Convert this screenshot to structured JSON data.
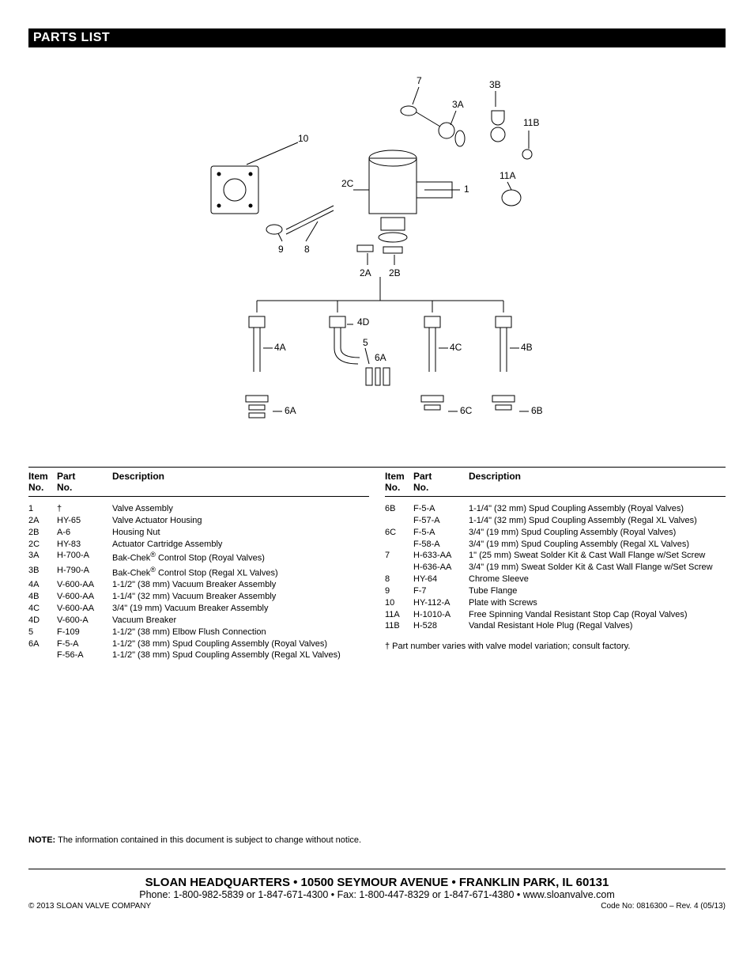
{
  "title": "PARTS LIST",
  "diagram": {
    "labels": [
      "7",
      "3B",
      "3A",
      "11B",
      "10",
      "2C",
      "1",
      "11A",
      "9",
      "8",
      "2A",
      "2B",
      "4D",
      "4A",
      "5",
      "4C",
      "4B",
      "6A",
      "6A",
      "6C",
      "6B"
    ],
    "colors": {
      "stroke": "#000000",
      "background": "#ffffff"
    }
  },
  "table_headers": {
    "item": "Item No.",
    "part": "Part No.",
    "desc": "Description"
  },
  "left_rows": [
    {
      "item": "1",
      "part": "†",
      "desc": "Valve Assembly"
    },
    {
      "item": "2A",
      "part": "HY-65",
      "desc": "Valve Actuator Housing"
    },
    {
      "item": "2B",
      "part": "A-6",
      "desc": "Housing Nut"
    },
    {
      "item": "2C",
      "part": "HY-83",
      "desc": "Actuator Cartridge Assembly"
    },
    {
      "item": "3A",
      "part": "H-700-A",
      "desc": "Bak-Chek® Control Stop (Royal Valves)"
    },
    {
      "item": "3B",
      "part": "H-790-A",
      "desc": "Bak-Chek® Control Stop (Regal XL Valves)"
    },
    {
      "item": "4A",
      "part": "V-600-AA",
      "desc": "1-1/2\" (38 mm) Vacuum Breaker Assembly"
    },
    {
      "item": "4B",
      "part": "V-600-AA",
      "desc": "1-1/4\" (32 mm) Vacuum Breaker Assembly"
    },
    {
      "item": "4C",
      "part": "V-600-AA",
      "desc": "3/4\" (19 mm) Vacuum Breaker Assembly"
    },
    {
      "item": "4D",
      "part": "V-600-A",
      "desc": "Vacuum Breaker"
    },
    {
      "item": "5",
      "part": "F-109",
      "desc": "1-1/2\" (38 mm) Elbow Flush Connection"
    },
    {
      "item": "6A",
      "part": "F-5-A",
      "desc": "1-1/2\" (38 mm) Spud Coupling Assembly (Royal Valves)"
    },
    {
      "item": "",
      "part": "F-56-A",
      "desc": "1-1/2\" (38 mm) Spud Coupling Assembly (Regal XL Valves)"
    }
  ],
  "right_rows": [
    {
      "item": "6B",
      "part": "F-5-A",
      "desc": "1-1/4\" (32 mm) Spud Coupling Assembly (Royal Valves)"
    },
    {
      "item": "",
      "part": "F-57-A",
      "desc": "1-1/4\" (32 mm) Spud Coupling Assembly (Regal XL Valves)"
    },
    {
      "item": "6C",
      "part": "F-5-A",
      "desc": "3/4\" (19 mm) Spud Coupling Assembly (Royal Valves)"
    },
    {
      "item": "",
      "part": "F-58-A",
      "desc": "3/4\" (19 mm) Spud Coupling Assembly (Regal XL Valves)"
    },
    {
      "item": "7",
      "part": "H-633-AA",
      "desc": "1\" (25 mm) Sweat Solder Kit & Cast Wall Flange w/Set Screw"
    },
    {
      "item": "",
      "part": "H-636-AA",
      "desc": "3/4\" (19 mm) Sweat Solder Kit & Cast Wall Flange w/Set Screw"
    },
    {
      "item": "8",
      "part": "HY-64",
      "desc": "Chrome Sleeve"
    },
    {
      "item": "9",
      "part": "F-7",
      "desc": "Tube Flange"
    },
    {
      "item": "10",
      "part": "HY-112-A",
      "desc": "Plate with Screws"
    },
    {
      "item": "11A",
      "part": "H-1010-A",
      "desc": "Free Spinning Vandal Resistant Stop Cap (Royal Valves)"
    },
    {
      "item": "11B",
      "part": "H-528",
      "desc": "Vandal Resistant Hole Plug (Regal Valves)"
    }
  ],
  "footnote": "† Part number varies with valve model variation; consult factory.",
  "note_label": "NOTE:",
  "note_text": "The information contained in this document is subject to change without notice.",
  "footer": {
    "hq": "SLOAN HEADQUARTERS • 10500 SEYMOUR AVENUE • FRANKLIN PARK, IL 60131",
    "contact": "Phone: 1-800-982-5839 or 1-847-671-4300 • Fax: 1-800-447-8329 or 1-847-671-4380 • www.sloanvalve.com",
    "copyright": "© 2013 SLOAN VALVE COMPANY",
    "code": "Code No: 0816300 – Rev. 4 (05/13)"
  }
}
